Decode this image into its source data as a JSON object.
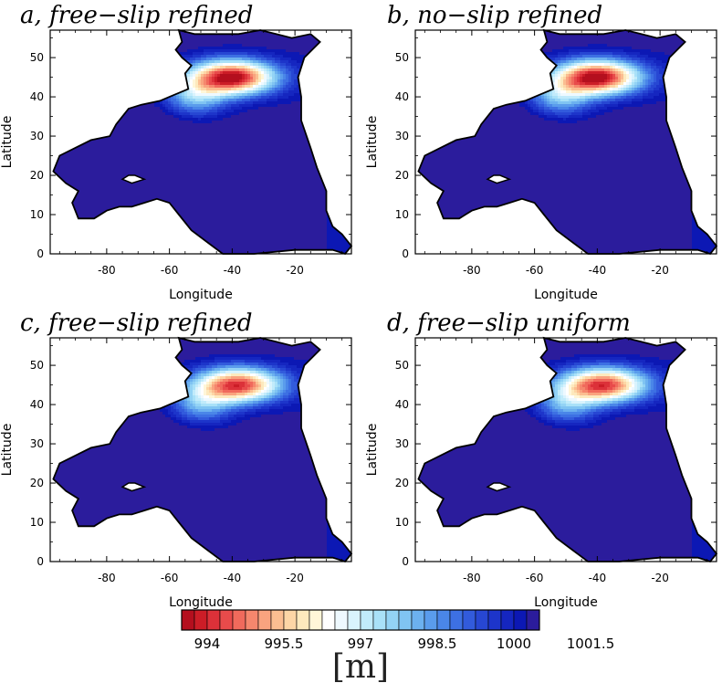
{
  "chart_data": [
    {
      "type": "heatmap",
      "title": "a, free−slip refined",
      "xlabel": "Longitude",
      "ylabel": "Latitude",
      "xlim": [
        -98,
        -2
      ],
      "ylim": [
        0,
        57
      ],
      "xticks": [
        -80,
        -60,
        -40,
        -20
      ],
      "yticks": [
        0,
        10,
        20,
        30,
        40,
        50
      ],
      "field": {
        "high_center": {
          "lon": -40,
          "lat": 45,
          "value": 993.5
        },
        "low_center": {
          "lon": -68,
          "lat": 21,
          "value": 1002
        },
        "background_value": 1000.5
      }
    },
    {
      "type": "heatmap",
      "title": "b, no−slip refined",
      "xlabel": "Longitude",
      "ylabel": "Latitude",
      "xlim": [
        -98,
        -2
      ],
      "ylim": [
        0,
        57
      ],
      "xticks": [
        -80,
        -60,
        -40,
        -20
      ],
      "yticks": [
        0,
        10,
        20,
        30,
        40,
        50
      ],
      "field": {
        "high_center": {
          "lon": -40,
          "lat": 45,
          "value": 993.5
        },
        "low_center": {
          "lon": -68,
          "lat": 21,
          "value": 1002
        },
        "background_value": 1000.5
      }
    },
    {
      "type": "heatmap",
      "title": "c, free−slip refined",
      "xlabel": "Longitude",
      "ylabel": "Latitude",
      "xlim": [
        -98,
        -2
      ],
      "ylim": [
        0,
        57
      ],
      "xticks": [
        -80,
        -60,
        -40,
        -20
      ],
      "yticks": [
        0,
        10,
        20,
        30,
        40,
        50
      ],
      "field": {
        "high_center": {
          "lon": -38,
          "lat": 45,
          "value": 994.2
        },
        "low_center": {
          "lon": -68,
          "lat": 22,
          "value": 1001.8
        },
        "background_value": 1000.5
      }
    },
    {
      "type": "heatmap",
      "title": "d, free−slip uniform",
      "xlabel": "Longitude",
      "ylabel": "Latitude",
      "xlim": [
        -98,
        -2
      ],
      "ylim": [
        0,
        57
      ],
      "xticks": [
        -80,
        -60,
        -40,
        -20
      ],
      "yticks": [
        0,
        10,
        20,
        30,
        40,
        50
      ],
      "field": {
        "high_center": {
          "lon": -38,
          "lat": 45,
          "value": 994.2
        },
        "low_center": {
          "lon": -68,
          "lat": 22,
          "value": 1001.8
        },
        "background_value": 1000.5
      }
    }
  ],
  "domain_outline_lonlat": [
    [
      -57,
      57
    ],
    [
      -52,
      56
    ],
    [
      -45,
      56
    ],
    [
      -38,
      56
    ],
    [
      -31,
      57
    ],
    [
      -26,
      56
    ],
    [
      -21,
      55
    ],
    [
      -15,
      56
    ],
    [
      -12,
      54
    ],
    [
      -17,
      50
    ],
    [
      -19,
      45
    ],
    [
      -18,
      40
    ],
    [
      -18,
      34
    ],
    [
      -15,
      27
    ],
    [
      -13,
      22
    ],
    [
      -10,
      16
    ],
    [
      -10,
      11
    ],
    [
      -8,
      7
    ],
    [
      -5,
      5
    ],
    [
      -2,
      2
    ],
    [
      -4,
      0
    ],
    [
      -8,
      1
    ],
    [
      -20,
      1
    ],
    [
      -33,
      0
    ],
    [
      -43,
      0
    ],
    [
      -48,
      3
    ],
    [
      -53,
      6
    ],
    [
      -57,
      10
    ],
    [
      -60,
      13
    ],
    [
      -64,
      14
    ],
    [
      -68,
      13
    ],
    [
      -72,
      12
    ],
    [
      -76,
      12
    ],
    [
      -80,
      11
    ],
    [
      -84,
      9
    ],
    [
      -89,
      9
    ],
    [
      -91,
      13
    ],
    [
      -89,
      16
    ],
    [
      -93,
      18
    ],
    [
      -97,
      21
    ],
    [
      -95,
      25
    ],
    [
      -90,
      27
    ],
    [
      -85,
      29
    ],
    [
      -79,
      30
    ],
    [
      -77,
      33
    ],
    [
      -73,
      37
    ],
    [
      -69,
      38
    ],
    [
      -63,
      39
    ],
    [
      -60,
      40
    ],
    [
      -54,
      42
    ],
    [
      -55,
      46
    ],
    [
      -53,
      48
    ],
    [
      -56,
      50
    ],
    [
      -58,
      52
    ],
    [
      -56,
      54
    ]
  ],
  "island_lonlat": [
    [
      -75,
      19
    ],
    [
      -72,
      18
    ],
    [
      -68,
      19
    ],
    [
      -71,
      20
    ],
    [
      -73,
      20
    ]
  ],
  "colorbar": {
    "colors": [
      "#b40f1e",
      "#cc1d27",
      "#dc3139",
      "#e84b4b",
      "#f06a5c",
      "#f5876d",
      "#f9a37f",
      "#fbbe91",
      "#fdd6a6",
      "#fde9bd",
      "#fff6d8",
      "#ffffff",
      "#eef9ff",
      "#d9f3fd",
      "#c1ebfb",
      "#a9e1f8",
      "#93d3f5",
      "#80c4f2",
      "#6cb1ef",
      "#5a9cec",
      "#4a86e8",
      "#3d70e3",
      "#325bdc",
      "#2747d3",
      "#1d35ca",
      "#1526c0",
      "#0c18b4",
      "#2b1c9c"
    ],
    "min": 993.5,
    "step": 0.25,
    "labels": [
      "994",
      "995.5",
      "997",
      "998.5",
      "1000",
      "1001.5"
    ],
    "unit": "[m]"
  }
}
